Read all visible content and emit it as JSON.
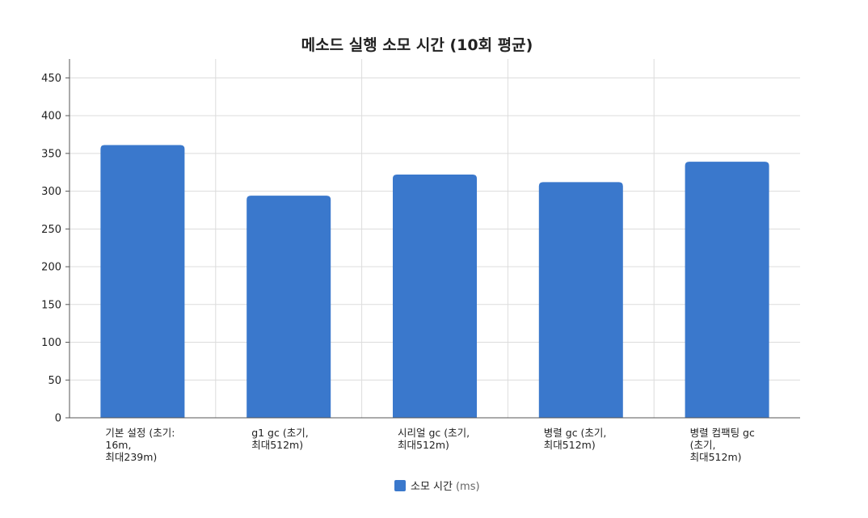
{
  "chart_data": {
    "type": "bar",
    "title": "메소드 실행 소모 시간 (10회 평균)",
    "categories": [
      [
        "기본 설정 (초기:",
        "16m,",
        "최대239m)"
      ],
      [
        "g1 gc (초기,",
        "최대512m)"
      ],
      [
        "시리얼  gc (초기,",
        "최대512m)"
      ],
      [
        "병렬 gc (초기,",
        "최대512m)"
      ],
      [
        "병렬 컴팩팅 gc",
        "(초기,",
        "최대512m)"
      ]
    ],
    "series": [
      {
        "name": "소모 시간",
        "unit": "(ms)",
        "values": [
          361,
          294,
          322,
          312,
          339
        ]
      }
    ],
    "ylim": [
      0,
      475
    ],
    "yticks": [
      0,
      50,
      100,
      150,
      200,
      250,
      300,
      350,
      400,
      450
    ],
    "xlabel": "",
    "ylabel": "",
    "grid": true,
    "legend_position": "bottom-center",
    "colors": {
      "bar": "#3a78cc",
      "grid": "#dcdcdc",
      "axis": "#555555"
    }
  }
}
